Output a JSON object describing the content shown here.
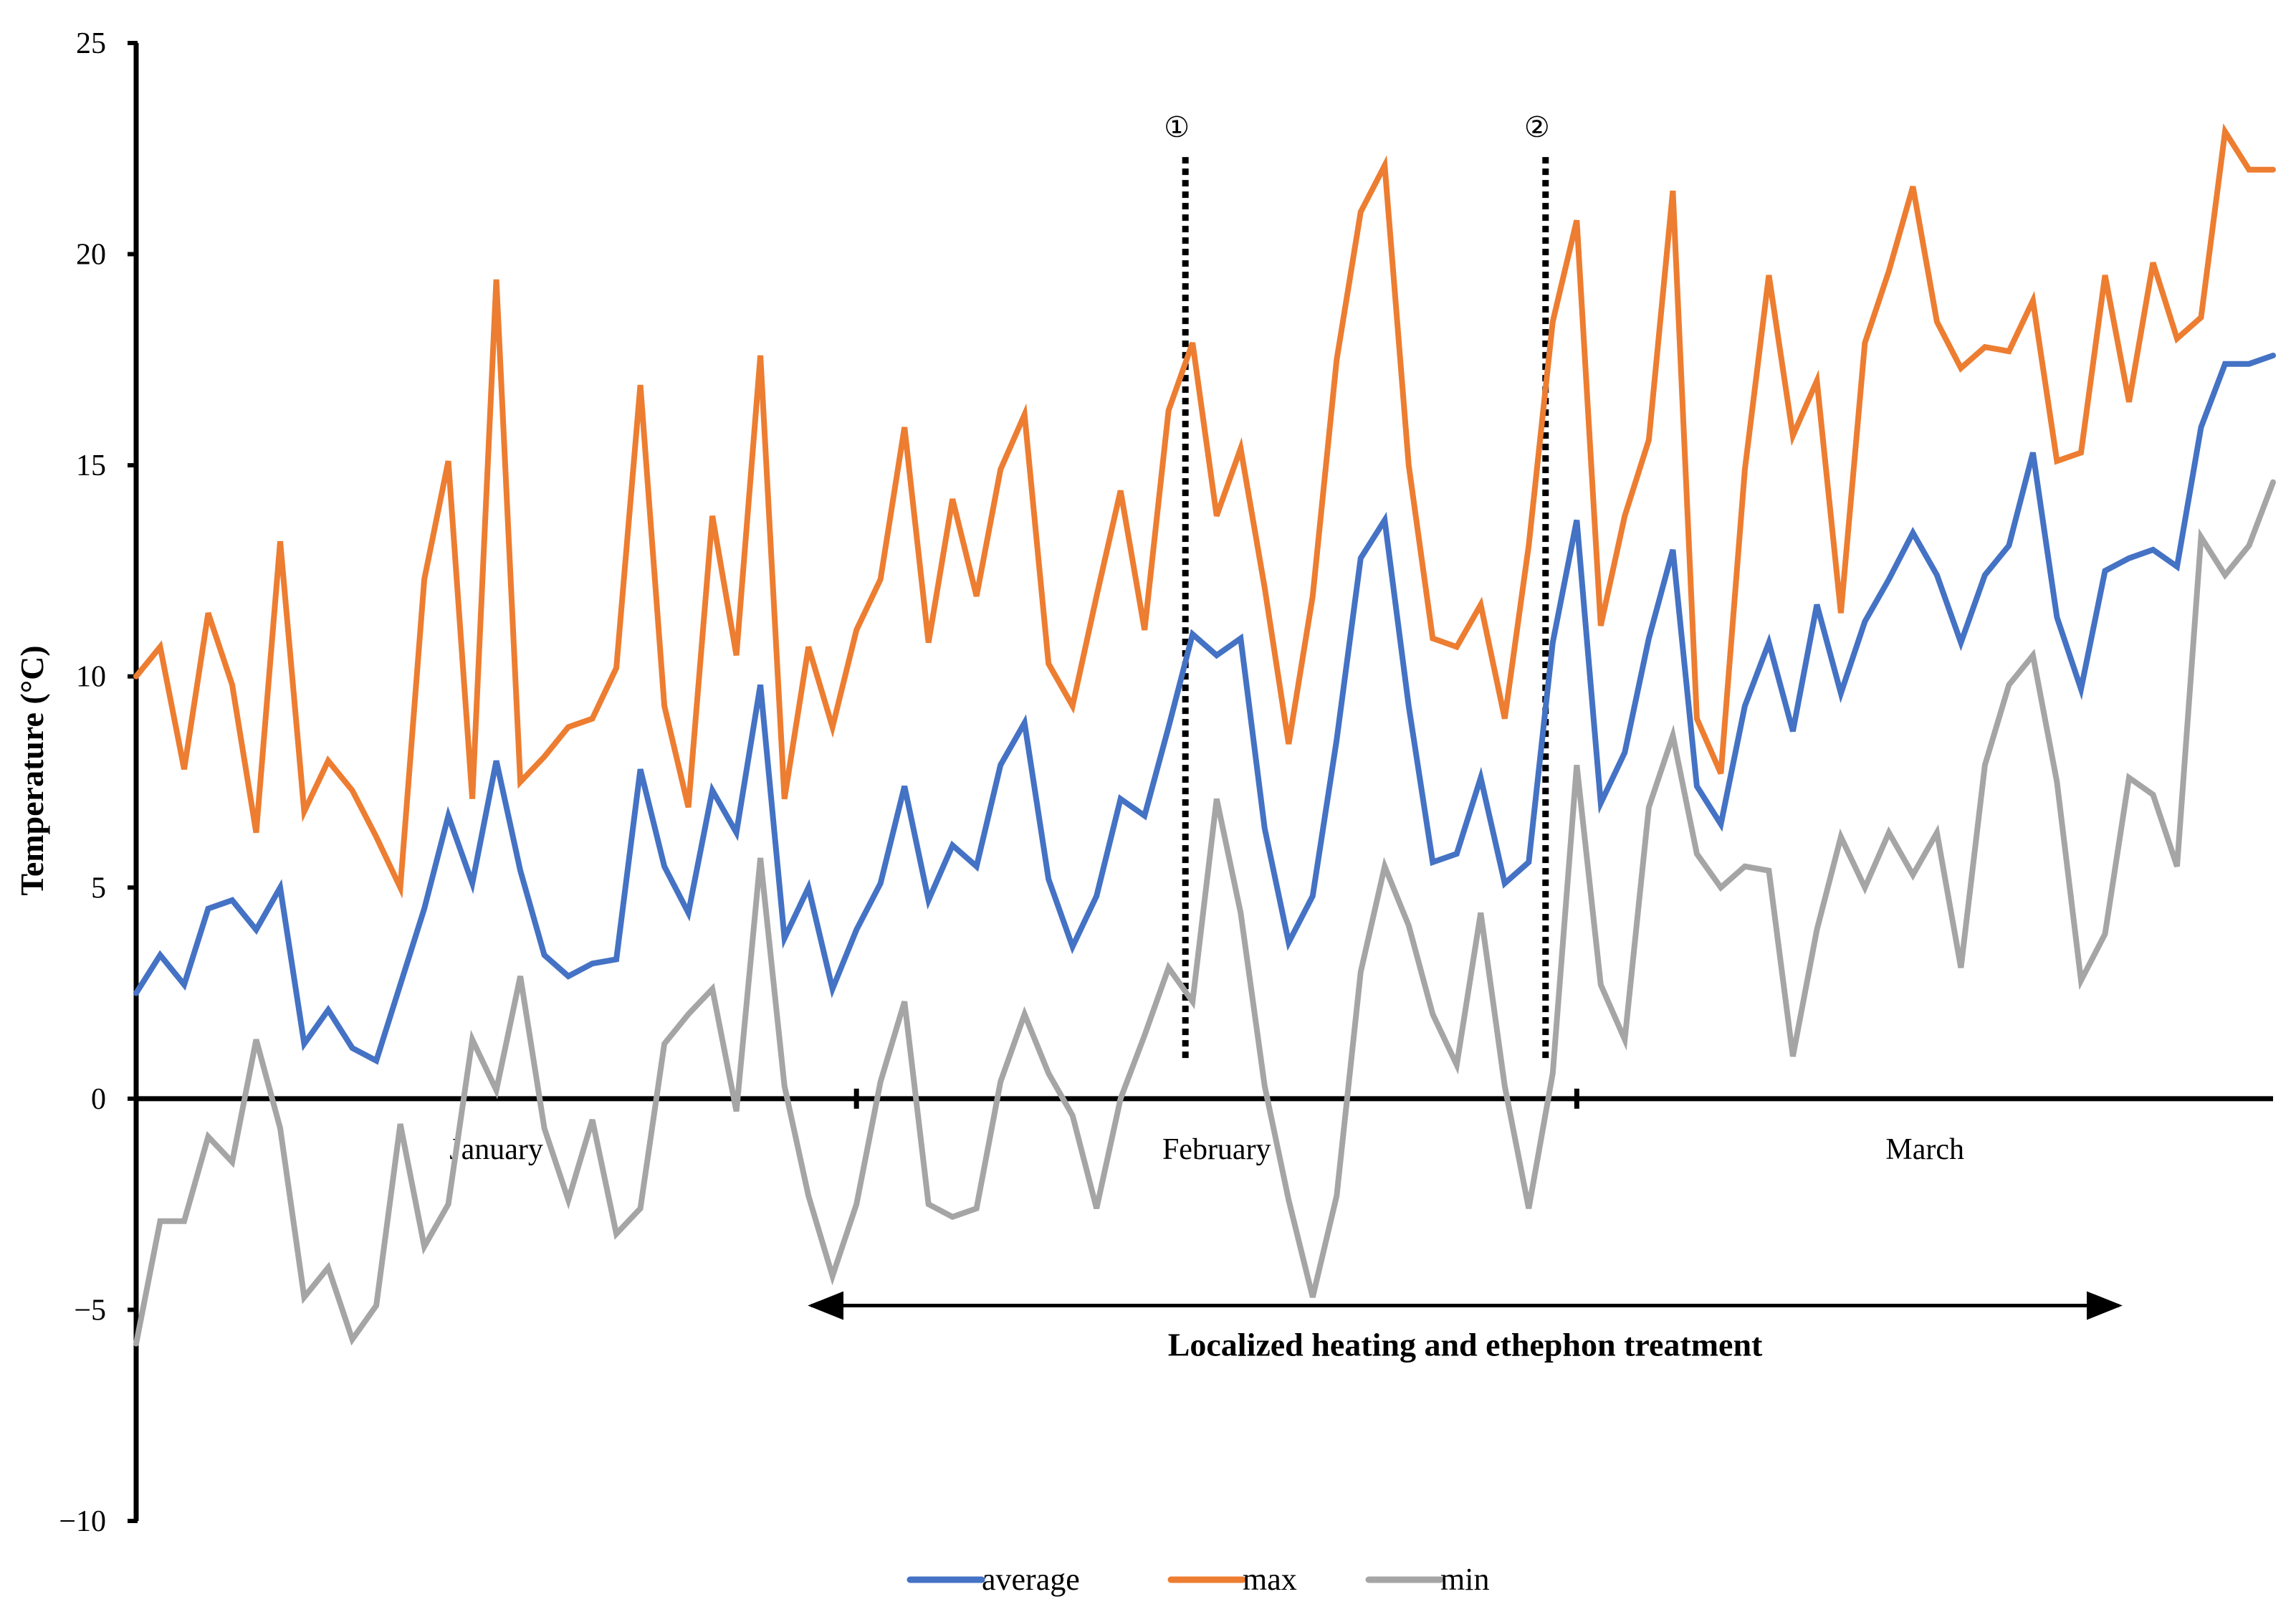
{
  "chart_data": {
    "type": "line",
    "title": "",
    "xlabel": "",
    "ylabel": "Temperature (°C)",
    "ylim": [
      -10,
      25
    ],
    "yticks": [
      25,
      20,
      15,
      10,
      5,
      0,
      -5,
      -10
    ],
    "ytick_labels": [
      "25",
      "20",
      "15",
      "10",
      "5",
      "0",
      "−5",
      "−10"
    ],
    "x_count": 90,
    "months": [
      {
        "label": "January",
        "start_day": 0,
        "end_day": 30
      },
      {
        "label": "February",
        "start_day": 30,
        "end_day": 60
      },
      {
        "label": "March",
        "start_day": 60,
        "end_day": 90
      }
    ],
    "month_boundaries": [
      30,
      60
    ],
    "series": [
      {
        "name": "average",
        "color": "#4472C4",
        "values": [
          2.5,
          3.4,
          2.7,
          4.5,
          4.7,
          4.0,
          5.0,
          1.3,
          2.1,
          1.2,
          0.9,
          2.7,
          4.5,
          6.7,
          5.1,
          8.0,
          5.4,
          3.4,
          2.9,
          3.2,
          3.3,
          7.8,
          5.5,
          4.4,
          7.3,
          6.3,
          9.8,
          3.8,
          5.0,
          2.6,
          4.0,
          5.1,
          7.4,
          4.7,
          6.0,
          5.5,
          7.9,
          8.9,
          5.2,
          3.6,
          4.8,
          7.1,
          6.7,
          8.8,
          11.0,
          10.5,
          10.9,
          6.4,
          3.7,
          4.8,
          8.5,
          12.8,
          13.7,
          9.3,
          5.6,
          5.8,
          7.6,
          5.1,
          5.6,
          10.8,
          13.7,
          7.0,
          8.2,
          10.9,
          13.0,
          7.4,
          6.5,
          9.3,
          10.8,
          8.7,
          11.7,
          9.6,
          11.3,
          12.3,
          13.4,
          12.4,
          10.8,
          12.4,
          13.1,
          15.3,
          11.4,
          9.7,
          12.5,
          12.8,
          13.0,
          12.6,
          15.9,
          17.4,
          17.4,
          17.6
        ]
      },
      {
        "name": "max",
        "color": "#ED7D31",
        "values": [
          10.0,
          10.7,
          7.8,
          11.5,
          9.8,
          6.3,
          13.2,
          6.8,
          8.0,
          7.3,
          6.2,
          5.0,
          12.3,
          15.1,
          7.1,
          19.4,
          7.5,
          8.1,
          8.8,
          9.0,
          10.2,
          16.9,
          9.3,
          6.9,
          13.8,
          10.5,
          17.6,
          7.1,
          10.7,
          8.8,
          11.1,
          12.3,
          15.9,
          10.8,
          14.2,
          11.9,
          14.9,
          16.2,
          10.3,
          9.3,
          11.9,
          14.4,
          11.1,
          16.3,
          17.9,
          13.8,
          15.4,
          12.1,
          8.4,
          11.9,
          17.5,
          21.0,
          22.1,
          15.0,
          10.9,
          10.7,
          11.7,
          9.0,
          13.1,
          18.4,
          20.8,
          11.2,
          13.8,
          15.6,
          21.5,
          9.0,
          7.7,
          14.9,
          19.5,
          15.7,
          17.0,
          11.5,
          17.9,
          19.6,
          21.6,
          18.4,
          17.3,
          17.8,
          17.7,
          18.9,
          15.1,
          15.3,
          19.5,
          16.5,
          19.8,
          18.0,
          18.5,
          22.9,
          22.0,
          22.0
        ]
      },
      {
        "name": "min",
        "color": "#A5A5A5",
        "values": [
          -5.8,
          -2.9,
          -2.9,
          -0.9,
          -1.5,
          1.4,
          -0.7,
          -4.7,
          -4.0,
          -5.7,
          -4.9,
          -0.6,
          -3.5,
          -2.5,
          1.4,
          0.2,
          2.9,
          -0.7,
          -2.4,
          -0.5,
          -3.2,
          -2.6,
          1.3,
          2.0,
          2.6,
          -0.3,
          5.7,
          0.3,
          -2.3,
          -4.2,
          -2.5,
          0.4,
          2.3,
          -2.5,
          -2.8,
          -2.6,
          0.4,
          2.0,
          0.6,
          -0.4,
          -2.6,
          0.0,
          1.5,
          3.1,
          2.3,
          7.1,
          4.4,
          0.3,
          -2.4,
          -4.7,
          -2.3,
          3.0,
          5.5,
          4.1,
          2.0,
          0.8,
          4.4,
          0.3,
          -2.6,
          0.6,
          7.9,
          2.7,
          1.4,
          6.9,
          8.6,
          5.8,
          5.0,
          5.5,
          5.4,
          1.0,
          4.0,
          6.2,
          5.0,
          6.3,
          5.3,
          6.3,
          3.1,
          7.9,
          9.8,
          10.5,
          7.5,
          2.8,
          3.9,
          7.6,
          7.2,
          5.5,
          13.3,
          12.4,
          13.1,
          14.6
        ]
      }
    ],
    "vertical_markers": [
      {
        "label": "①",
        "day": 43.7,
        "y_from": 0.9,
        "y_to": 22.3
      },
      {
        "label": "②",
        "day": 58.7,
        "y_from": 0.9,
        "y_to": 22.3
      }
    ],
    "annotation": {
      "text": "Localized heating and ethephon treatment",
      "from_day": 28.0,
      "to_day": 82.7,
      "y": -4.9
    },
    "legend": {
      "position": "bottom-center",
      "entries": [
        "average",
        "max",
        "min"
      ]
    }
  }
}
